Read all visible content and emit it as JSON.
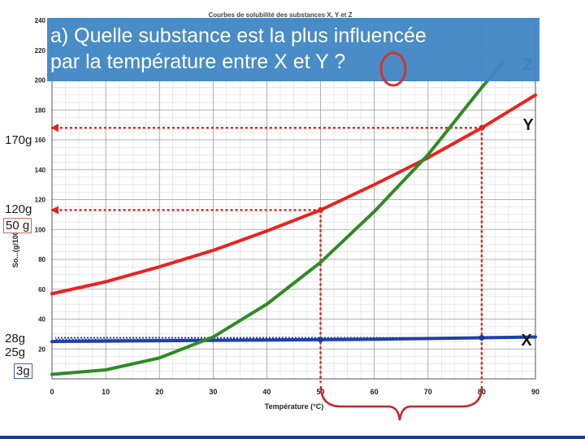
{
  "question": {
    "line1": "a) Quelle substance est la plus influencée",
    "line2": "par la température entre X et Y ?"
  },
  "chart_data": {
    "type": "line",
    "title": "Courbes de solubilité des substances X, Y et Z",
    "xlabel": "Température (°C)",
    "ylabel": "So...(g/100ml)",
    "xlim": [
      0,
      90
    ],
    "ylim": [
      0,
      240
    ],
    "x_ticks": [
      0,
      10,
      20,
      30,
      40,
      50,
      60,
      70,
      80,
      90
    ],
    "y_ticks": [
      20,
      40,
      60,
      80,
      100,
      120,
      140,
      160,
      180,
      200,
      220,
      240
    ],
    "grid": true,
    "series": [
      {
        "name": "X",
        "color": "#1f3faa",
        "x": [
          0,
          20,
          40,
          60,
          80,
          90
        ],
        "y": [
          25,
          25.5,
          26,
          26.5,
          27.5,
          28
        ]
      },
      {
        "name": "Y",
        "color": "#e8231f",
        "x": [
          0,
          10,
          20,
          30,
          40,
          50,
          60,
          70,
          80,
          90
        ],
        "y": [
          57,
          65,
          75,
          86,
          99,
          113,
          130,
          148,
          168,
          190
        ]
      },
      {
        "name": "Z",
        "color": "#2e8b22",
        "x": [
          0,
          10,
          20,
          30,
          40,
          50,
          60,
          70,
          80,
          84
        ],
        "y": [
          3,
          6,
          14,
          28,
          50,
          78,
          112,
          150,
          195,
          212
        ]
      }
    ],
    "series_labels": [
      "X",
      "Y",
      "Z"
    ],
    "annotations": {
      "y170": "170g",
      "y120": "120g",
      "y50": "50 g",
      "y28": "28g",
      "y25": "25g",
      "y3": "3g"
    },
    "reference_x": [
      50,
      80
    ]
  }
}
